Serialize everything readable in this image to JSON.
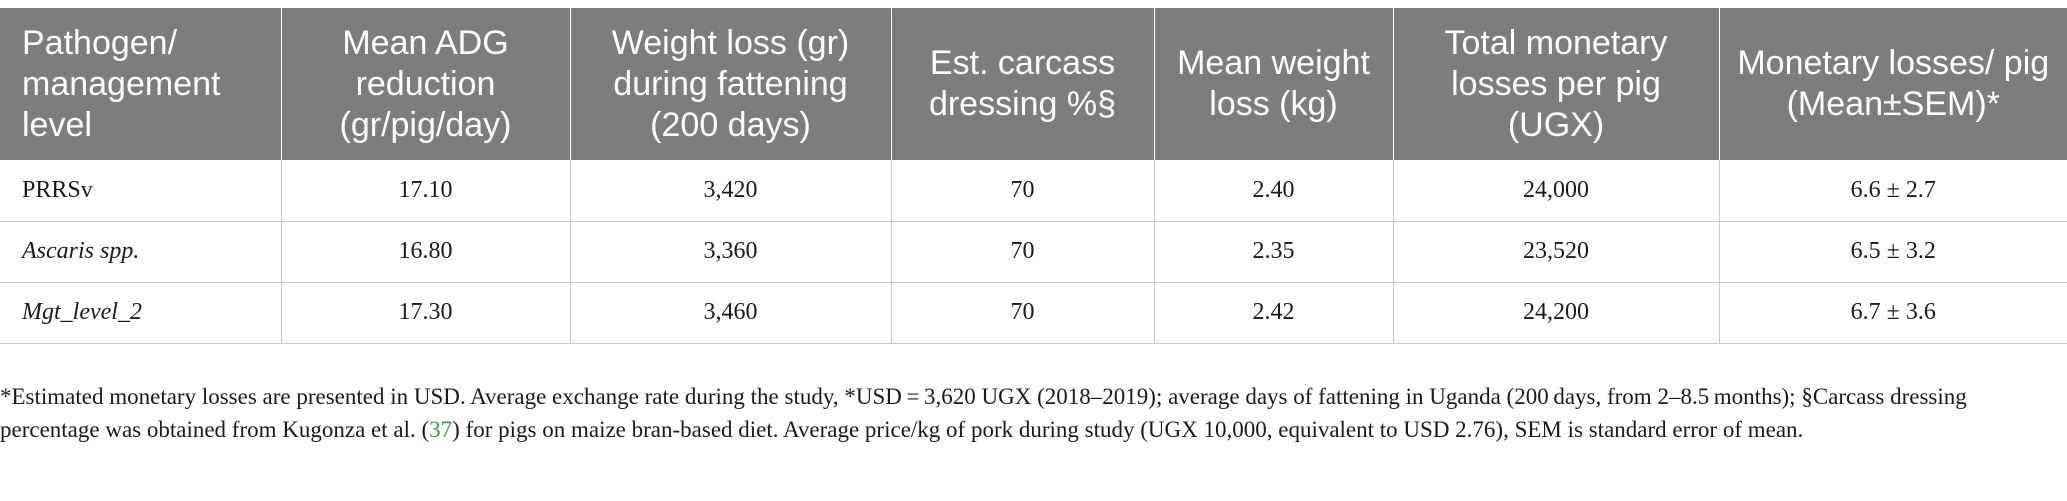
{
  "table": {
    "headers": [
      "Pathogen/ management level",
      "Mean ADG reduction (gr/pig/day)",
      "Weight loss (gr) during fattening (200 days)",
      "Est. carcass dressing %§",
      "Mean weight loss (kg)",
      "Total monetary losses per pig (UGX)",
      "Monetary losses/ pig (Mean±SEM)*"
    ],
    "rows": [
      [
        "PRRSv",
        "17.10",
        "3,420",
        "70",
        "2.40",
        "24,000",
        "6.6 ± 2.7"
      ],
      [
        "Ascaris spp.",
        "16.80",
        "3,360",
        "70",
        "2.35",
        "23,520",
        "6.5 ± 3.2"
      ],
      [
        "Mgt_level_2",
        "17.30",
        "3,460",
        "70",
        "2.42",
        "24,200",
        "6.7 ± 3.6"
      ]
    ],
    "italic_rows": [
      false,
      true,
      true
    ]
  },
  "footnote": {
    "part1": "*Estimated monetary losses are presented in USD. Average exchange rate during the study, *USD = 3,620 UGX (2018–2019); average days of fattening in Uganda (200 days, from 2–8.5 months); §Carcass dressing percentage was obtained from Kugonza et al. (",
    "ref": "37",
    "part2": ") for pigs on maize bran-based diet. Average price/kg of pork during study (UGX 10,000, equivalent to USD 2.76), SEM is standard error of mean.",
    "ref_color": "#3a9a3a"
  }
}
